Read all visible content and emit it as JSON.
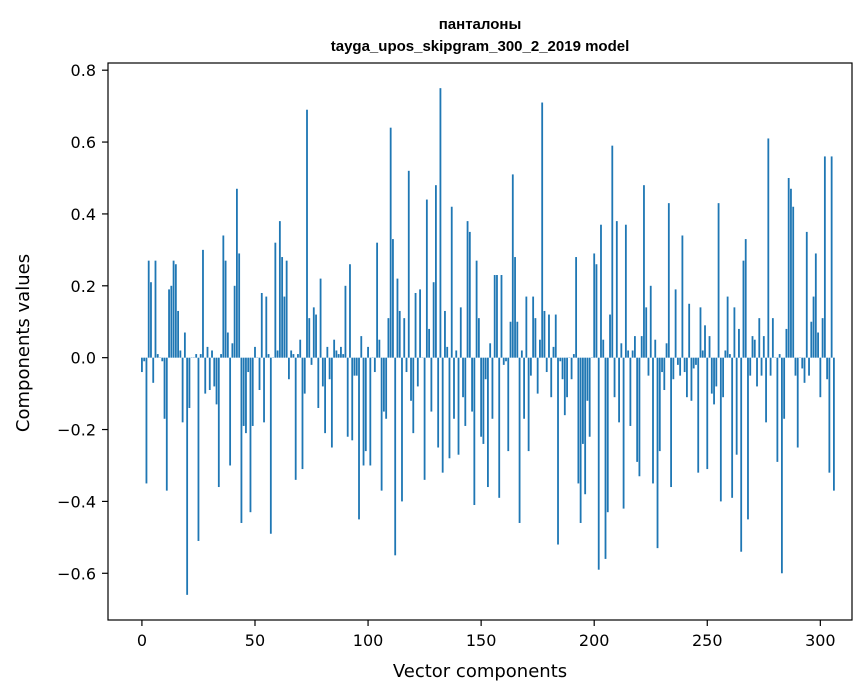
{
  "chart_data": {
    "type": "bar",
    "title": "панталоны",
    "subtitle": "tayga_upos_skipgram_300_2_2019 model",
    "xlabel": "Vector components",
    "ylabel": "Components values",
    "xlim": [
      -15,
      314
    ],
    "ylim": [
      -0.73,
      0.82
    ],
    "xticks": [
      0,
      50,
      100,
      150,
      200,
      250,
      300
    ],
    "yticks": [
      -0.6,
      -0.4,
      -0.2,
      0.0,
      0.2,
      0.4,
      0.6,
      0.8
    ],
    "ytick_labels": [
      "−0.6",
      "−0.4",
      "−0.2",
      "0.0",
      "0.2",
      "0.4",
      "0.6",
      "0.8"
    ],
    "xtick_labels": [
      "0",
      "50",
      "100",
      "150",
      "200",
      "250",
      "300"
    ],
    "grid": false,
    "bar_color": "#1f77b4",
    "values": [
      -0.04,
      -0.01,
      -0.35,
      0.27,
      0.21,
      -0.07,
      0.27,
      0.01,
      0.0,
      -0.01,
      -0.17,
      -0.37,
      0.19,
      0.2,
      0.27,
      0.26,
      0.13,
      0.02,
      -0.18,
      0.07,
      -0.66,
      -0.14,
      0.0,
      0.0,
      0.01,
      -0.51,
      0.01,
      0.3,
      -0.1,
      0.03,
      -0.09,
      0.02,
      -0.08,
      -0.13,
      -0.36,
      0.01,
      0.34,
      0.27,
      0.07,
      -0.3,
      0.04,
      0.2,
      0.47,
      0.29,
      -0.46,
      -0.19,
      -0.21,
      -0.04,
      -0.43,
      -0.19,
      0.03,
      0.0,
      -0.09,
      0.18,
      -0.18,
      0.17,
      0.01,
      -0.49,
      0.0,
      0.32,
      0.02,
      0.38,
      0.28,
      0.17,
      0.27,
      -0.06,
      0.02,
      0.01,
      -0.34,
      0.01,
      0.05,
      -0.31,
      -0.1,
      0.69,
      0.11,
      -0.02,
      0.14,
      0.12,
      -0.14,
      0.22,
      -0.08,
      -0.21,
      0.03,
      -0.06,
      -0.25,
      0.05,
      0.02,
      0.01,
      0.03,
      0.01,
      0.2,
      -0.22,
      0.26,
      -0.23,
      -0.05,
      -0.05,
      -0.45,
      0.06,
      -0.3,
      -0.26,
      0.03,
      -0.3,
      0.0,
      -0.04,
      0.32,
      0.05,
      -0.37,
      -0.15,
      -0.17,
      0.11,
      0.64,
      0.33,
      -0.55,
      0.22,
      0.13,
      -0.4,
      0.11,
      -0.04,
      0.52,
      -0.12,
      -0.21,
      0.18,
      -0.08,
      0.19,
      0.0,
      -0.34,
      0.44,
      0.08,
      -0.15,
      0.21,
      0.48,
      -0.25,
      0.75,
      -0.32,
      0.13,
      0.03,
      -0.28,
      0.42,
      -0.17,
      0.02,
      -0.27,
      0.14,
      -0.11,
      -0.19,
      0.38,
      0.35,
      -0.15,
      -0.41,
      0.27,
      0.11,
      -0.22,
      -0.24,
      -0.06,
      -0.36,
      0.04,
      -0.17,
      0.23,
      0.23,
      -0.39,
      0.23,
      -0.02,
      -0.01,
      -0.26,
      0.1,
      0.51,
      0.28,
      0.1,
      -0.46,
      0.02,
      -0.17,
      0.17,
      -0.26,
      -0.05,
      0.17,
      0.11,
      -0.1,
      0.05,
      0.71,
      0.13,
      -0.04,
      0.12,
      -0.11,
      0.03,
      0.12,
      -0.52,
      -0.01,
      -0.06,
      -0.16,
      -0.11,
      0.0,
      -0.06,
      0.01,
      0.28,
      -0.35,
      -0.46,
      -0.24,
      -0.38,
      -0.12,
      -0.22,
      0.0,
      0.29,
      0.26,
      -0.59,
      0.37,
      0.05,
      -0.56,
      -0.43,
      0.12,
      0.59,
      -0.11,
      0.38,
      -0.18,
      0.04,
      -0.42,
      0.37,
      0.02,
      -0.19,
      0.02,
      0.06,
      -0.29,
      -0.33,
      0.06,
      0.48,
      0.14,
      -0.05,
      0.2,
      -0.35,
      0.05,
      -0.53,
      -0.26,
      -0.04,
      -0.09,
      0.04,
      0.43,
      -0.36,
      -0.06,
      0.19,
      -0.02,
      -0.05,
      0.34,
      -0.04,
      -0.11,
      0.15,
      -0.12,
      -0.03,
      -0.02,
      -0.32,
      0.14,
      0.02,
      0.09,
      -0.31,
      0.06,
      -0.1,
      -0.13,
      -0.08,
      0.43,
      -0.4,
      -0.11,
      0.02,
      0.17,
      0.01,
      -0.39,
      0.14,
      -0.27,
      0.08,
      -0.54,
      0.27,
      0.33,
      -0.45,
      -0.05,
      0.06,
      0.05,
      -0.08,
      0.11,
      -0.05,
      0.06,
      -0.18,
      0.61,
      -0.05,
      0.11,
      0.0,
      -0.29,
      0.01,
      -0.6,
      -0.17,
      0.08,
      0.5,
      0.47,
      0.42,
      -0.05,
      -0.25,
      0.0,
      -0.03,
      -0.07,
      0.35,
      -0.05,
      0.1,
      0.17,
      0.29,
      0.07,
      -0.11,
      0.11,
      0.56,
      -0.06,
      -0.32,
      0.56,
      -0.37
    ]
  }
}
